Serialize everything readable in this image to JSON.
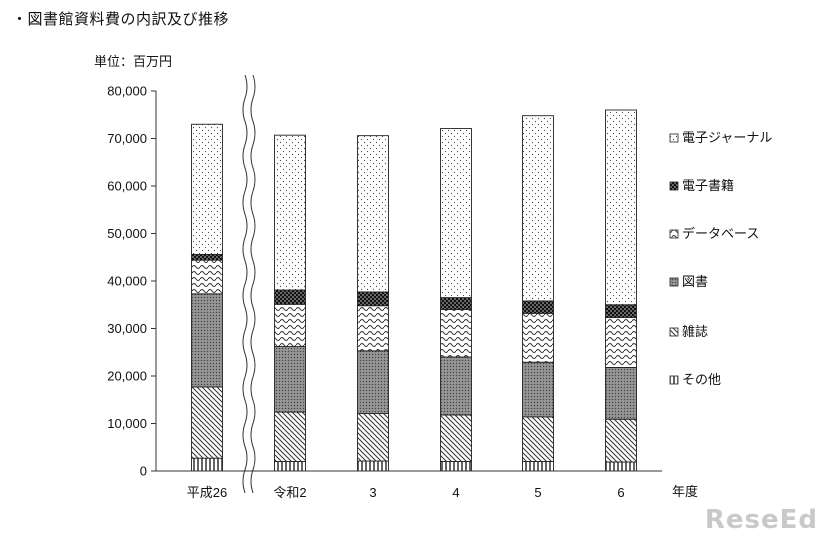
{
  "page": {
    "title": "・図書館資料費の内訳及び推移",
    "watermark": "ReseEd"
  },
  "chart_data": {
    "type": "bar",
    "stacked": true,
    "title": "・図書館資料費の内訳及び推移",
    "unit_label": "単位：百万円",
    "xlabel": "年度",
    "categories": [
      "平成26",
      "令和2",
      "3",
      "4",
      "5",
      "6"
    ],
    "ylim": [
      0,
      80000
    ],
    "yticks": [
      "0",
      "10,000",
      "20,000",
      "30,000",
      "40,000",
      "50,000",
      "60,000",
      "70,000",
      "80,000"
    ],
    "yticks_values": [
      0,
      10000,
      20000,
      30000,
      40000,
      50000,
      60000,
      70000,
      80000
    ],
    "grid": false,
    "axis_break": "between 平成26 and 令和2",
    "legend_position": "right",
    "series": [
      {
        "name": "その他",
        "pattern": "vertical-lines",
        "values": [
          2700,
          2000,
          2100,
          2000,
          2000,
          1900
        ]
      },
      {
        "name": "雑誌",
        "pattern": "diagonal-lines",
        "values": [
          15000,
          10400,
          10000,
          9800,
          9400,
          9000
        ]
      },
      {
        "name": "図書",
        "pattern": "dots-dense",
        "values": [
          19600,
          13800,
          13200,
          12200,
          11500,
          10900
        ]
      },
      {
        "name": "データベース",
        "pattern": "waves",
        "values": [
          7100,
          8900,
          9500,
          10000,
          10300,
          10500
        ]
      },
      {
        "name": "電子書籍",
        "pattern": "checker",
        "values": [
          1200,
          3000,
          2900,
          2500,
          2600,
          2700
        ]
      },
      {
        "name": "電子ジャーナル",
        "pattern": "dots-sparse",
        "values": [
          27400,
          32600,
          32900,
          35600,
          39000,
          41000
        ]
      }
    ],
    "legend_order": [
      "電子ジャーナル",
      "電子書籍",
      "データベース",
      "図書",
      "雑誌",
      "その他"
    ]
  }
}
